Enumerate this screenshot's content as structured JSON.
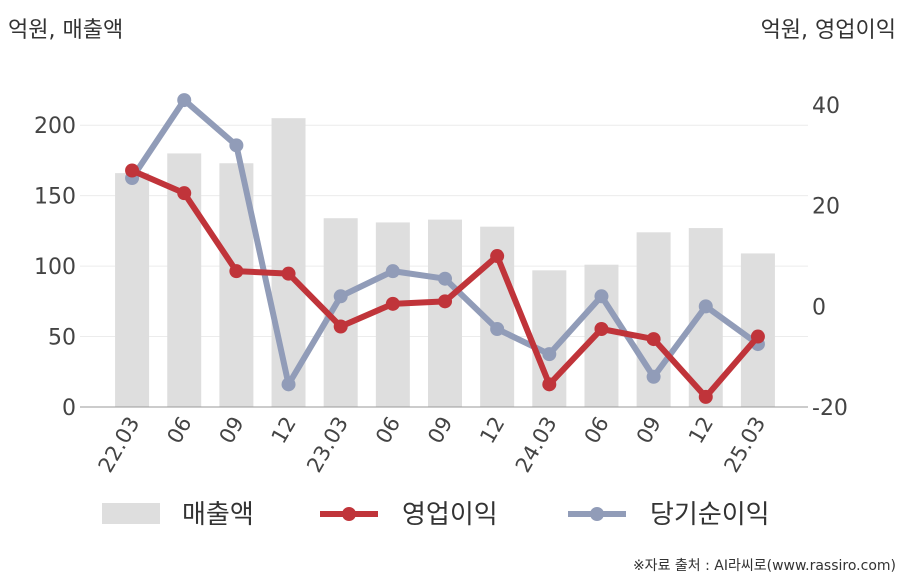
{
  "chart_data": {
    "type": "bar+line",
    "left_unit_label": "억원, 매출액",
    "right_unit_label": "억원, 영업이익",
    "categories": [
      "22.03",
      "06",
      "09",
      "12",
      "23.03",
      "06",
      "09",
      "12",
      "24.03",
      "06",
      "09",
      "12",
      "25.03"
    ],
    "left_axis": {
      "ylim": [
        0,
        225
      ],
      "ticks": [
        0,
        50,
        100,
        150,
        200
      ]
    },
    "right_axis": {
      "ylim": [
        -20,
        43
      ],
      "ticks": [
        -20,
        0,
        20,
        40
      ]
    },
    "grid": true,
    "series": [
      {
        "name": "매출액",
        "kind": "bar",
        "axis": "left",
        "color": "#dedede",
        "values": [
          166,
          180,
          173,
          205,
          134,
          131,
          133,
          128,
          97,
          101,
          124,
          127,
          109
        ]
      },
      {
        "name": "영업이익",
        "kind": "line",
        "axis": "right",
        "color": "#c0343a",
        "values": [
          27,
          22.5,
          7,
          6.5,
          -4,
          0.5,
          1,
          10,
          -15.5,
          -4.5,
          -6.5,
          -18,
          -6
        ]
      },
      {
        "name": "당기순이익",
        "kind": "line",
        "axis": "right",
        "color": "#919cb8",
        "values": [
          25.5,
          41,
          32,
          -15.5,
          2,
          7,
          5.5,
          -4.5,
          -9.5,
          2,
          -14,
          0,
          -7.5
        ]
      }
    ],
    "legend_position": "bottom"
  },
  "source_note": "※자료 출처 : AI라씨로(www.rassiro.com)"
}
